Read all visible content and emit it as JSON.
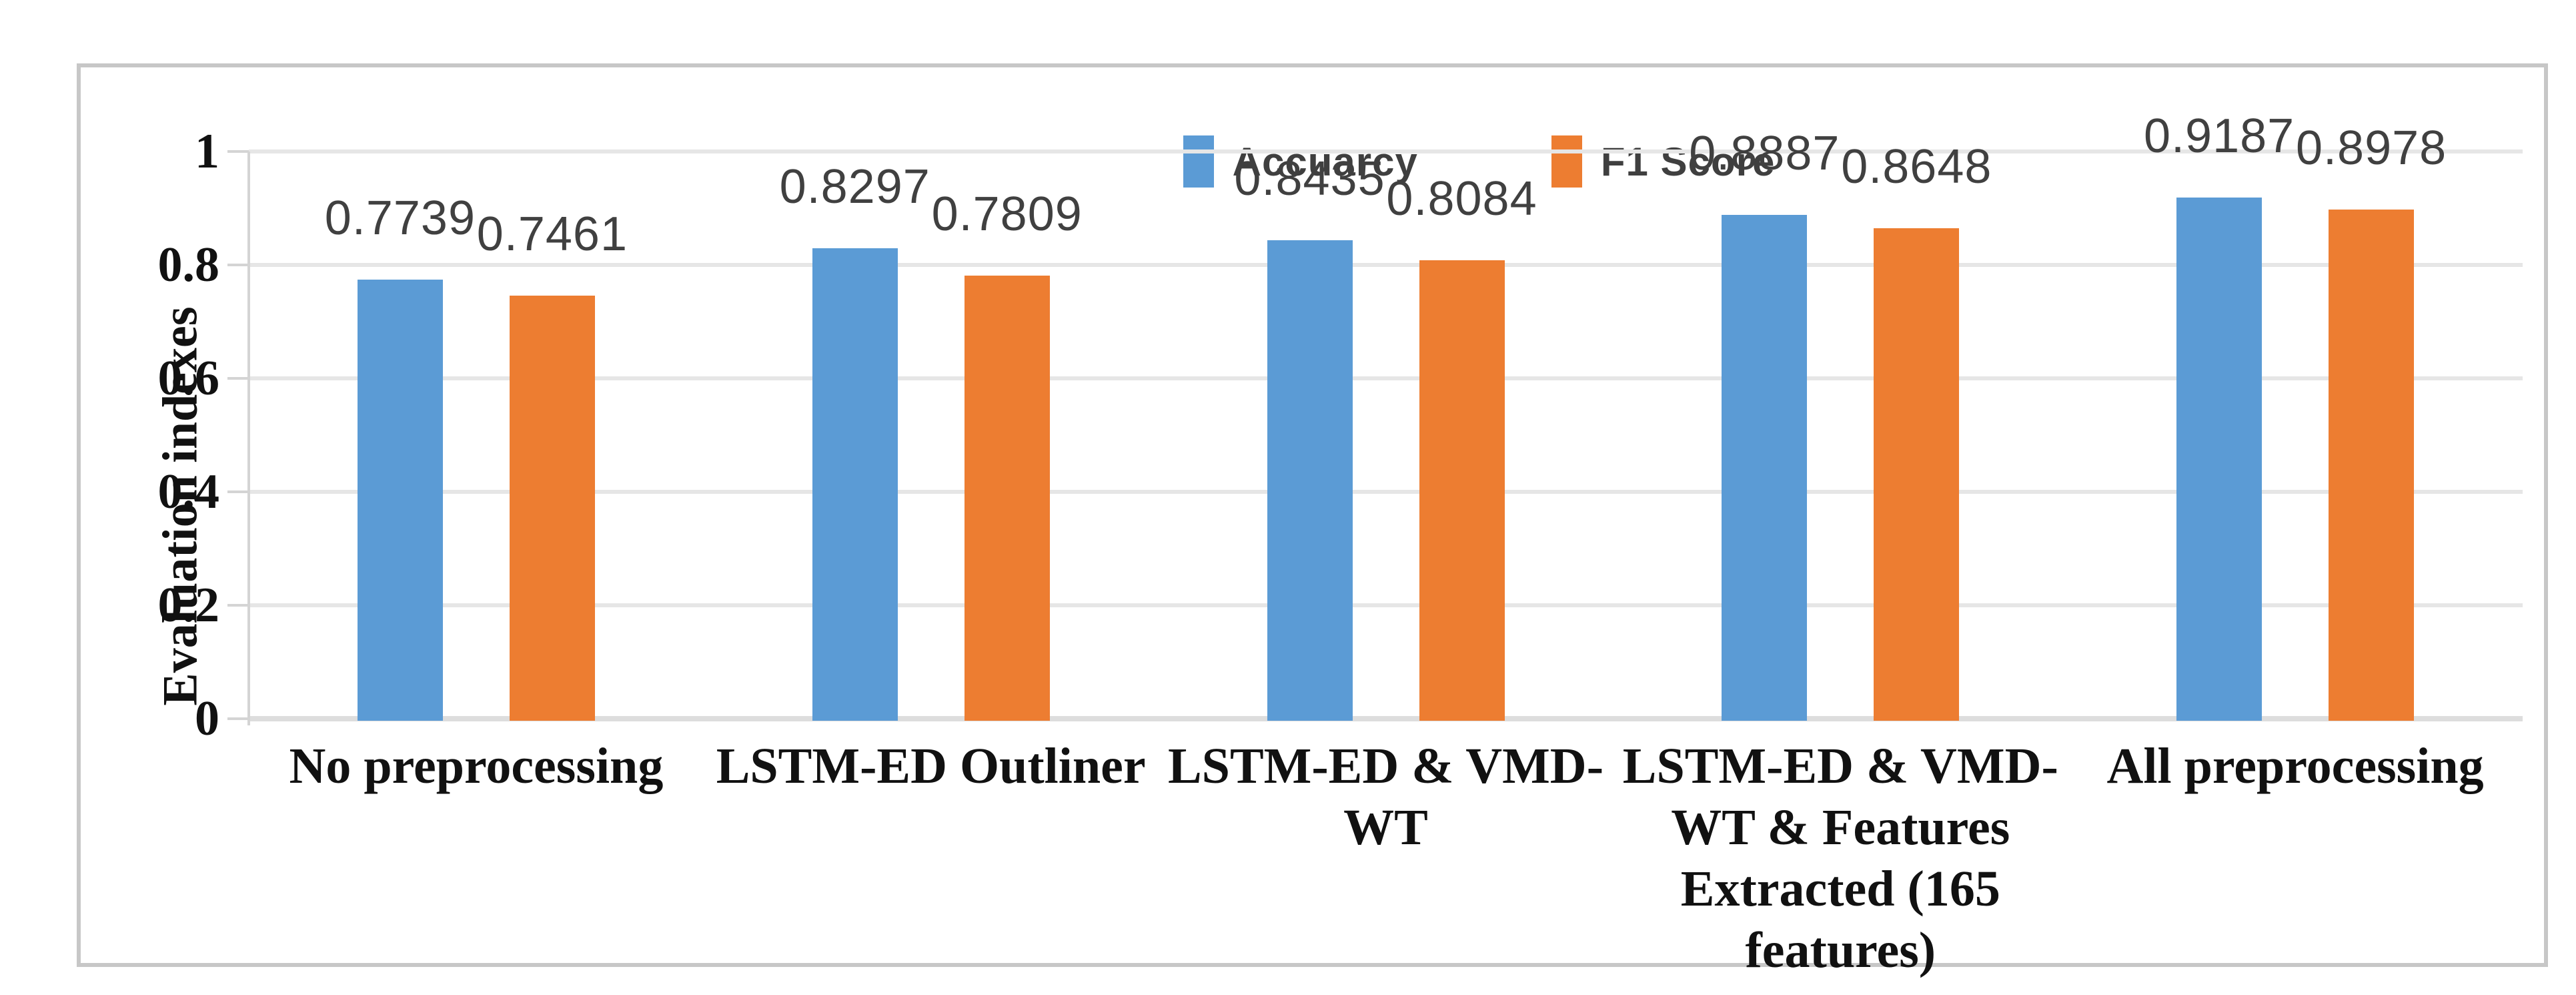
{
  "chart_data": {
    "type": "bar",
    "title": "",
    "categories": [
      "No preprocessing",
      "LSTM-ED Outliner",
      "LSTM-ED & VMD-\nWT",
      "LSTM-ED & VMD-\nWT & Features\nExtracted (165\nfeatures)",
      "All preprocessing"
    ],
    "series": [
      {
        "name": "Accuarcy",
        "color": "#5B9BD5",
        "values": [
          0.7739,
          0.8297,
          0.8435,
          0.8887,
          0.9187
        ],
        "data_labels": [
          "0.7739",
          "0.8297",
          "0.8435",
          "0.8887",
          "0.9187"
        ]
      },
      {
        "name": "F1 Score",
        "color": "#ED7D31",
        "values": [
          0.7461,
          0.7809,
          0.8084,
          0.8648,
          0.8978
        ],
        "data_labels": [
          "0.7461",
          "0.7809",
          "0.8084",
          "0.8648",
          "0.8978"
        ]
      }
    ],
    "xlabel": "",
    "ylabel": "Evaluation indexes",
    "ylim": [
      0,
      1
    ],
    "yticks": [
      {
        "value": 1,
        "label": "1"
      },
      {
        "value": 0.8,
        "label": "0.8"
      },
      {
        "value": 0.6,
        "label": "0.6"
      },
      {
        "value": 0.4,
        "label": "0.4"
      },
      {
        "value": 0.2,
        "label": "0.2"
      },
      {
        "value": 0,
        "label": "0"
      }
    ],
    "grid": true,
    "legend_position": "top",
    "data_labels_shown": true
  },
  "colors": {
    "accuracy_series": "#5B9BD5",
    "f1_series": "#ED7D31",
    "gridline": "#e6e6e6",
    "axis_line": "#d4d4d4",
    "frame_border": "#c7c7c7",
    "axis_text": "#111111",
    "data_label_text": "#404040",
    "legend_text": "#3f3f3f"
  }
}
